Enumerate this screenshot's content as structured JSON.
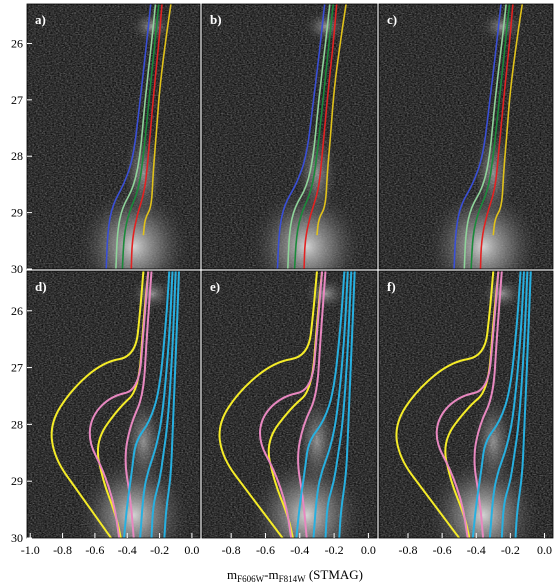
{
  "chart_data": {
    "type": "scatter",
    "description_units": "color-magnitude diagrams (Hess density) with isochrone overlays",
    "xlabel_main": "m",
    "xlabel_sub1": "F606W",
    "xlabel_mid": "-m",
    "xlabel_sub2": "F814W",
    "xlabel_unit": " (STMAG)",
    "ylabel": "",
    "y_ticks": [
      "26",
      "27",
      "28",
      "29",
      "30"
    ],
    "y_range": [
      25.3,
      30.0
    ],
    "x_ticks_left": [
      "-1.0",
      "-0.8",
      "-0.6",
      "-0.4",
      "-0.2",
      "0.0"
    ],
    "x_ticks_other": [
      "-0.8",
      "-0.6",
      "-0.4",
      "-0.2",
      "0.0"
    ],
    "x_range_left": [
      -1.02,
      0.05
    ],
    "x_range_other": [
      -0.97,
      0.05
    ],
    "colors": {
      "background": "#000000",
      "blue": "#3a4fd6",
      "light_green": "#8fd49a",
      "dark_green": "#1a8a3a",
      "red": "#e32222",
      "gold": "#e0c21a",
      "yellow": "#f5ec28",
      "pink": "#e888c0",
      "cyan": "#27b0e0"
    },
    "panels": [
      {
        "label": "a)",
        "isochrones": "set1"
      },
      {
        "label": "b)",
        "isochrones": "set1"
      },
      {
        "label": "c)",
        "isochrones": "set1"
      },
      {
        "label": "d)",
        "isochrones": "set2"
      },
      {
        "label": "e)",
        "isochrones": "set2"
      },
      {
        "label": "f)",
        "isochrones": "set2"
      }
    ],
    "series_set1": [
      {
        "color": "blue",
        "points": [
          [
            -0.255,
            25.3
          ],
          [
            -0.28,
            26.0
          ],
          [
            -0.32,
            27.0
          ],
          [
            -0.36,
            28.0
          ],
          [
            -0.42,
            28.5
          ],
          [
            -0.49,
            28.85
          ],
          [
            -0.52,
            29.3
          ],
          [
            -0.53,
            30.0
          ]
        ]
      },
      {
        "color": "light_green",
        "points": [
          [
            -0.225,
            25.3
          ],
          [
            -0.25,
            26.0
          ],
          [
            -0.29,
            27.0
          ],
          [
            -0.32,
            28.0
          ],
          [
            -0.36,
            28.55
          ],
          [
            -0.43,
            28.9
          ],
          [
            -0.46,
            29.3
          ],
          [
            -0.47,
            30.0
          ]
        ]
      },
      {
        "color": "dark_green",
        "points": [
          [
            -0.205,
            25.3
          ],
          [
            -0.23,
            26.0
          ],
          [
            -0.265,
            27.0
          ],
          [
            -0.3,
            28.0
          ],
          [
            -0.33,
            28.6
          ],
          [
            -0.39,
            29.0
          ],
          [
            -0.42,
            29.4
          ],
          [
            -0.43,
            30.0
          ]
        ]
      },
      {
        "color": "red",
        "points": [
          [
            -0.185,
            25.3
          ],
          [
            -0.205,
            26.0
          ],
          [
            -0.24,
            27.0
          ],
          [
            -0.27,
            28.0
          ],
          [
            -0.29,
            28.6
          ],
          [
            -0.34,
            29.05
          ],
          [
            -0.37,
            29.5
          ],
          [
            -0.375,
            30.0
          ]
        ]
      },
      {
        "color": "gold",
        "points": [
          [
            -0.13,
            25.3
          ],
          [
            -0.16,
            25.9
          ],
          [
            -0.2,
            26.8
          ],
          [
            -0.22,
            27.6
          ],
          [
            -0.24,
            28.3
          ],
          [
            -0.25,
            28.9
          ],
          [
            -0.29,
            29.1
          ],
          [
            -0.3,
            29.4
          ]
        ]
      }
    ],
    "series_set2": [
      {
        "color": "yellow",
        "points": [
          [
            -0.3,
            25.3
          ],
          [
            -0.32,
            26.0
          ],
          [
            -0.35,
            26.8
          ],
          [
            -0.55,
            26.9
          ],
          [
            -0.75,
            27.4
          ],
          [
            -0.88,
            28.0
          ],
          [
            -0.85,
            28.6
          ],
          [
            -0.7,
            29.2
          ],
          [
            -0.55,
            29.8
          ],
          [
            -0.5,
            30.0
          ]
        ]
      },
      {
        "color": "yellow",
        "points": [
          [
            -0.27,
            25.3
          ],
          [
            -0.3,
            26.2
          ],
          [
            -0.33,
            27.4
          ],
          [
            -0.45,
            27.7
          ],
          [
            -0.6,
            28.3
          ],
          [
            -0.55,
            29.0
          ],
          [
            -0.47,
            29.6
          ],
          [
            -0.44,
            30.0
          ]
        ]
      },
      {
        "color": "pink",
        "points": [
          [
            -0.27,
            25.3
          ],
          [
            -0.3,
            26.4
          ],
          [
            -0.33,
            27.4
          ],
          [
            -0.5,
            27.5
          ],
          [
            -0.62,
            27.85
          ],
          [
            -0.64,
            28.3
          ],
          [
            -0.55,
            28.8
          ],
          [
            -0.48,
            29.4
          ],
          [
            -0.45,
            30.0
          ]
        ]
      },
      {
        "color": "pink",
        "points": [
          [
            -0.25,
            25.3
          ],
          [
            -0.28,
            26.5
          ],
          [
            -0.3,
            27.5
          ],
          [
            -0.38,
            28.0
          ],
          [
            -0.42,
            28.6
          ],
          [
            -0.38,
            29.3
          ],
          [
            -0.36,
            30.0
          ]
        ]
      },
      {
        "color": "cyan",
        "points": [
          [
            -0.14,
            25.3
          ],
          [
            -0.16,
            26.2
          ],
          [
            -0.2,
            27.4
          ],
          [
            -0.26,
            27.95
          ],
          [
            -0.35,
            28.3
          ],
          [
            -0.37,
            28.8
          ],
          [
            -0.4,
            29.4
          ],
          [
            -0.42,
            30.0
          ]
        ]
      },
      {
        "color": "cyan",
        "points": [
          [
            -0.12,
            25.3
          ],
          [
            -0.14,
            26.5
          ],
          [
            -0.18,
            27.8
          ],
          [
            -0.22,
            28.4
          ],
          [
            -0.27,
            28.8
          ],
          [
            -0.3,
            29.2
          ],
          [
            -0.32,
            30.0
          ]
        ]
      },
      {
        "color": "cyan",
        "points": [
          [
            -0.1,
            25.3
          ],
          [
            -0.12,
            26.7
          ],
          [
            -0.15,
            28.0
          ],
          [
            -0.18,
            28.6
          ],
          [
            -0.2,
            29.0
          ],
          [
            -0.24,
            29.4
          ],
          [
            -0.25,
            30.0
          ]
        ]
      },
      {
        "color": "cyan",
        "points": [
          [
            -0.08,
            25.3
          ],
          [
            -0.1,
            26.8
          ],
          [
            -0.12,
            28.2
          ],
          [
            -0.13,
            28.9
          ],
          [
            -0.16,
            29.5
          ],
          [
            -0.17,
            30.0
          ]
        ]
      }
    ]
  }
}
